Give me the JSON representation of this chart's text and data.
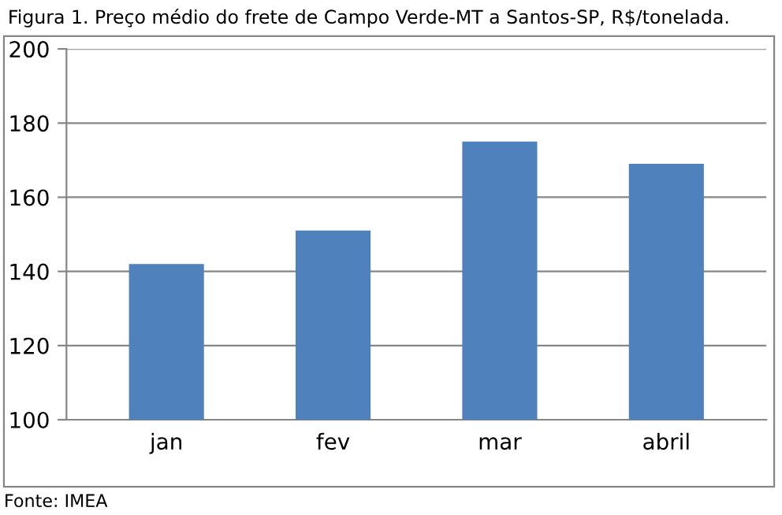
{
  "chart_data": {
    "type": "bar",
    "title": "Figura 1. Preço médio do frete de Campo Verde-MT a Santos-SP, R$/tonelada.",
    "categories": [
      "jan",
      "fev",
      "mar",
      "abril"
    ],
    "values": [
      142,
      151,
      175,
      169
    ],
    "color": "#4f81bd",
    "ylim": [
      100,
      200
    ],
    "yticks": [
      100,
      120,
      140,
      160,
      180,
      200
    ],
    "grid": "y",
    "annotations": [
      "Fonte: IMEA"
    ]
  }
}
